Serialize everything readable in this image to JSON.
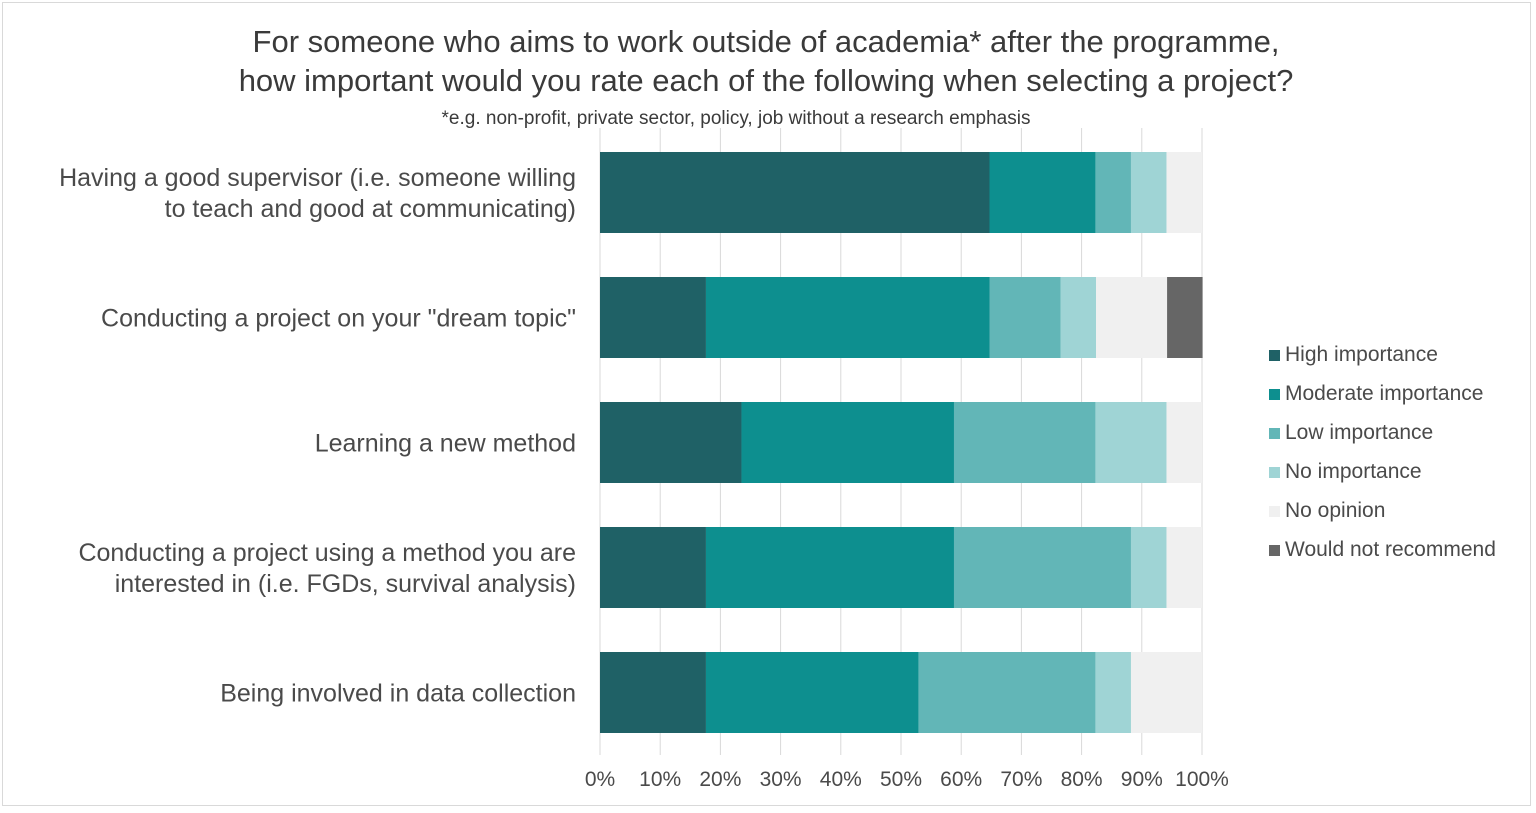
{
  "chart_data": {
    "type": "bar",
    "orientation": "horizontal",
    "stacked": "percent",
    "title_lines": [
      "For someone who aims to work outside of academia* after the programme,",
      "how important would you rate each of the following when selecting a project?"
    ],
    "subtitle": "*e.g. non-profit, private sector, policy, job without a research emphasis",
    "categories": [
      [
        "Having a good supervisor (i.e. someone willing",
        "to teach and good at communicating)"
      ],
      [
        "Conducting a project on your \"dream topic\""
      ],
      [
        "Learning a new method"
      ],
      [
        "Conducting a project using a method you are",
        "interested in (i.e. FGDs, survival analysis)"
      ],
      [
        "Being involved in data collection"
      ]
    ],
    "series": [
      {
        "name": "High importance",
        "color": "#1f6166",
        "values": [
          64.7,
          17.6,
          23.5,
          17.6,
          17.6
        ]
      },
      {
        "name": "Moderate importance",
        "color": "#0d8f8f",
        "values": [
          17.6,
          47.1,
          35.3,
          41.2,
          35.3
        ]
      },
      {
        "name": "Low importance",
        "color": "#62b6b7",
        "values": [
          5.9,
          11.8,
          23.5,
          29.4,
          29.4
        ]
      },
      {
        "name": "No importance",
        "color": "#9fd4d5",
        "values": [
          5.9,
          5.9,
          11.8,
          5.9,
          5.9
        ]
      },
      {
        "name": "No opinion",
        "color": "#f0f0f0",
        "values": [
          5.9,
          11.8,
          5.9,
          5.9,
          11.8
        ]
      },
      {
        "name": "Would not recommend",
        "color": "#666666",
        "values": [
          0,
          5.9,
          0,
          0,
          0
        ]
      }
    ],
    "xlim": [
      0,
      100
    ],
    "x_ticks": [
      "0%",
      "10%",
      "20%",
      "30%",
      "40%",
      "50%",
      "60%",
      "70%",
      "80%",
      "90%",
      "100%"
    ],
    "grid": true,
    "legend_position": "right"
  }
}
